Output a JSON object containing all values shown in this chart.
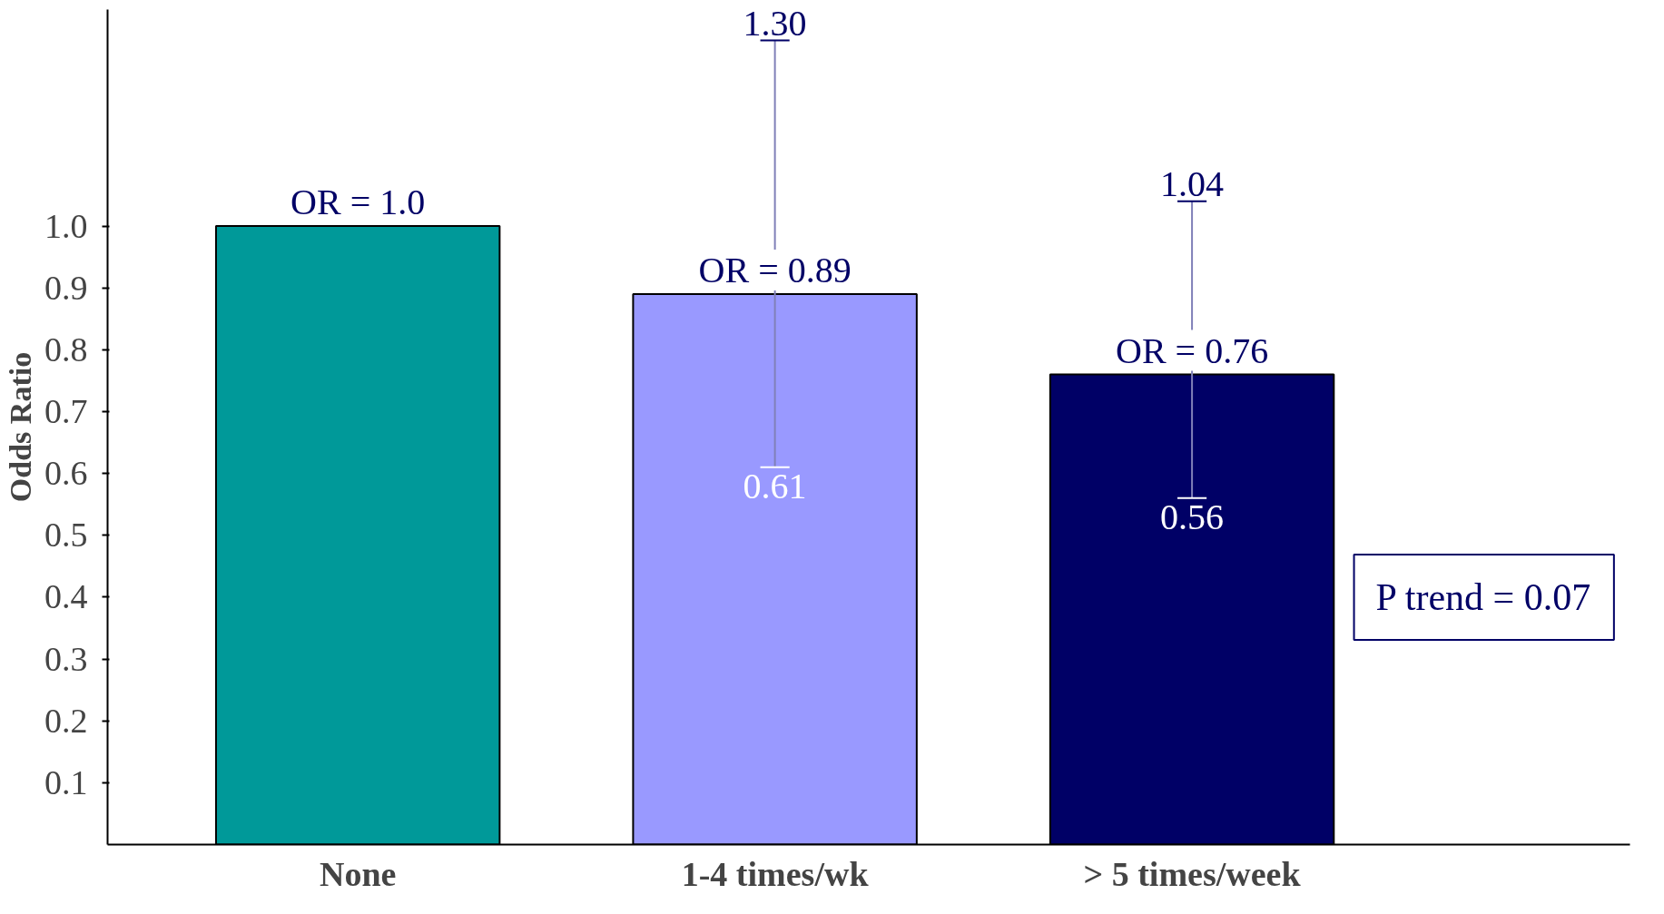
{
  "chart_data": {
    "type": "bar",
    "ylabel": "Odds Ratio",
    "categories": [
      "None",
      "1-4 times/wk",
      "> 5 times/week"
    ],
    "values": [
      1.0,
      0.89,
      0.76
    ],
    "colors": [
      "#009999",
      "#9999ff",
      "#000066"
    ],
    "errors": [
      null,
      [
        0.61,
        1.3
      ],
      [
        0.56,
        1.04
      ]
    ],
    "value_labels": [
      "OR = 1.0",
      "OR = 0.89",
      "OR = 0.76"
    ],
    "ylim": [
      0,
      1.35
    ],
    "yticks": [
      0.1,
      0.2,
      0.3,
      0.4,
      0.5,
      0.6,
      0.7,
      0.8,
      0.9,
      {
        "value": 1.0,
        "label": "1.0"
      }
    ],
    "grid": false,
    "annotations": [
      "1.30",
      "0.61",
      "1.04",
      "0.56",
      "P trend = 0.07"
    ]
  }
}
